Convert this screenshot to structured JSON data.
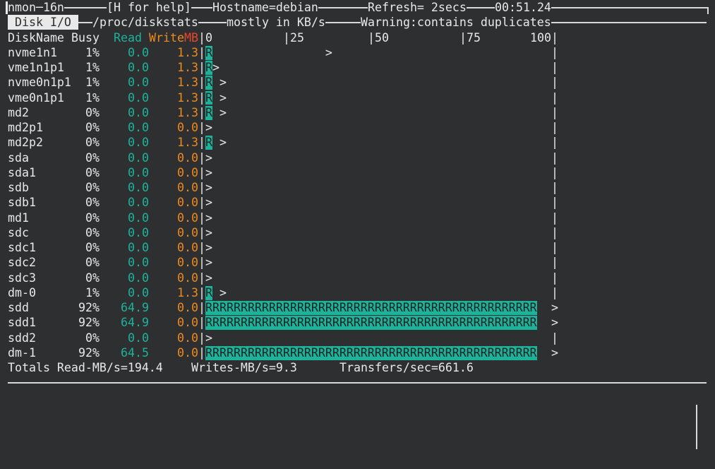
{
  "header": {
    "program": "nmon─16n",
    "help": "[H for help]",
    "hostname": "Hostname=debian",
    "refresh": "Refresh= 2secs",
    "clock": "00:51.24"
  },
  "panel": {
    "title": "Disk I/O",
    "source": "/proc/diskstats",
    "units": "mostly in KB/s",
    "warning": "Warning:contains duplicates"
  },
  "table": {
    "columns": [
      "DiskName",
      "Busy",
      "Read",
      "Write",
      "MB"
    ],
    "scale": [
      "|0",
      "|25",
      "|50",
      "|75",
      "100|"
    ],
    "rows": [
      {
        "name": "nvme1n1",
        "busy": "1%",
        "read": "0.0",
        "write": "1.3",
        "bar": "R                >",
        "end": "|"
      },
      {
        "name": "vme1n1p1",
        "busy": "1%",
        "read": "0.0",
        "write": "1.3",
        "bar": "R>",
        "end": "|"
      },
      {
        "name": "nvme0n1p1",
        "busy": "1%",
        "read": "0.0",
        "write": "1.3",
        "bar": "R >",
        "end": "|"
      },
      {
        "name": "vme0n1p1",
        "busy": "1%",
        "read": "0.0",
        "write": "1.3",
        "bar": "R >",
        "end": "|"
      },
      {
        "name": "md2",
        "busy": "0%",
        "read": "0.0",
        "write": "1.3",
        "bar": "R >",
        "end": "|"
      },
      {
        "name": "md2p1",
        "busy": "0%",
        "read": "0.0",
        "write": "0.0",
        "bar": ">",
        "end": "|"
      },
      {
        "name": "md2p2",
        "busy": "0%",
        "read": "0.0",
        "write": "1.3",
        "bar": "R >",
        "end": "|"
      },
      {
        "name": "sda",
        "busy": "0%",
        "read": "0.0",
        "write": "0.0",
        "bar": ">",
        "end": "|"
      },
      {
        "name": "sda1",
        "busy": "0%",
        "read": "0.0",
        "write": "0.0",
        "bar": ">",
        "end": "|"
      },
      {
        "name": "sdb",
        "busy": "0%",
        "read": "0.0",
        "write": "0.0",
        "bar": ">",
        "end": "|"
      },
      {
        "name": "sdb1",
        "busy": "0%",
        "read": "0.0",
        "write": "0.0",
        "bar": ">",
        "end": "|"
      },
      {
        "name": "md1",
        "busy": "0%",
        "read": "0.0",
        "write": "0.0",
        "bar": ">",
        "end": "|"
      },
      {
        "name": "sdc",
        "busy": "0%",
        "read": "0.0",
        "write": "0.0",
        "bar": ">",
        "end": "|"
      },
      {
        "name": "sdc1",
        "busy": "0%",
        "read": "0.0",
        "write": "0.0",
        "bar": ">",
        "end": "|"
      },
      {
        "name": "sdc2",
        "busy": "0%",
        "read": "0.0",
        "write": "0.0",
        "bar": ">",
        "end": "|"
      },
      {
        "name": "sdc3",
        "busy": "0%",
        "read": "0.0",
        "write": "0.0",
        "bar": ">",
        "end": "|"
      },
      {
        "name": "dm-0",
        "busy": "1%",
        "read": "0.0",
        "write": "1.3",
        "bar": "R >",
        "end": "|"
      },
      {
        "name": "sdd",
        "busy": "92%",
        "read": "64.9",
        "write": "0.0",
        "bar": "RRRRRRRRRRRRRRRRRRRRRRRRRRRRRRRRRRRRRRRRRRRRRRR",
        "end": ">"
      },
      {
        "name": "sdd1",
        "busy": "92%",
        "read": "64.9",
        "write": "0.0",
        "bar": "RRRRRRRRRRRRRRRRRRRRRRRRRRRRRRRRRRRRRRRRRRRRRRR",
        "end": ">"
      },
      {
        "name": "sdd2",
        "busy": "0%",
        "read": "0.0",
        "write": "0.0",
        "bar": ">",
        "end": "|"
      },
      {
        "name": "dm-1",
        "busy": "92%",
        "read": "64.5",
        "write": "0.0",
        "bar": "RRRRRRRRRRRRRRRRRRRRRRRRRRRRRRRRRRRRRRRRRRRRRRR",
        "end": ">"
      }
    ]
  },
  "totals": [
    "Totals Read-MB/s=194.4",
    "Writes-MB/s=9.3",
    "Transfers/sec=661.6"
  ]
}
